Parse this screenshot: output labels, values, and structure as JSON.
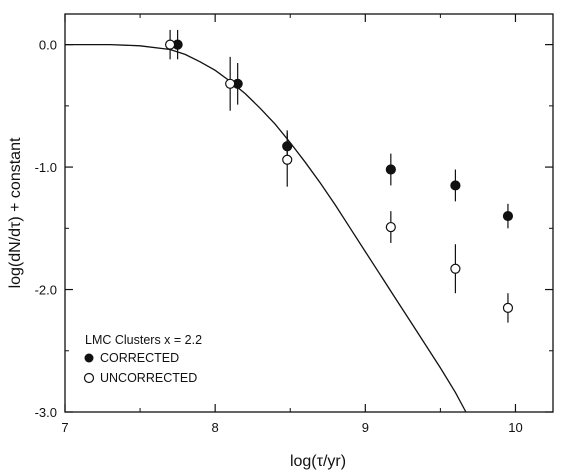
{
  "chart_data": {
    "type": "scatter",
    "title": "",
    "xlabel": "log(τ/yr)",
    "ylabel": "log(dN/dτ) + constant",
    "xlim": [
      7.0,
      10.25
    ],
    "ylim": [
      -3.0,
      0.25
    ],
    "xticks": [
      7,
      8,
      9,
      10
    ],
    "xtick_labels": [
      "7",
      "8",
      "9",
      "10"
    ],
    "yticks": [
      0.0,
      -1.0,
      -2.0,
      -3.0
    ],
    "ytick_labels": [
      "0.0",
      "-1.0",
      "-2.0",
      "-3.0"
    ],
    "legend": {
      "title": "LMC Clusters x = 2.2",
      "placement": "bottom-left",
      "entries": [
        "CORRECTED",
        "UNCORRECTED"
      ]
    },
    "series": [
      {
        "name": "CORRECTED",
        "marker": "filled-circle",
        "x": [
          7.75,
          8.15,
          8.48,
          9.17,
          9.6,
          9.95
        ],
        "y": [
          0.0,
          -0.32,
          -0.83,
          -1.02,
          -1.15,
          -1.4
        ],
        "err": [
          0.12,
          0.17,
          0.13,
          0.13,
          0.13,
          0.1
        ]
      },
      {
        "name": "UNCORRECTED",
        "marker": "open-circle",
        "x": [
          7.7,
          8.1,
          8.48,
          9.17,
          9.6,
          9.95
        ],
        "y": [
          0.0,
          -0.32,
          -0.94,
          -1.49,
          -1.83,
          -2.15
        ],
        "err": [
          0.12,
          0.22,
          0.22,
          0.13,
          0.2,
          0.12
        ]
      }
    ],
    "model_curve": {
      "x": [
        7.0,
        7.3,
        7.5,
        7.7,
        7.8,
        7.9,
        8.0,
        8.1,
        8.2,
        8.3,
        8.4,
        8.5,
        8.6,
        8.7,
        8.8,
        8.9,
        9.0,
        9.1,
        9.2,
        9.3,
        9.4,
        9.5,
        9.6,
        9.67
      ],
      "y": [
        0.0,
        0.0,
        -0.01,
        -0.04,
        -0.08,
        -0.14,
        -0.21,
        -0.3,
        -0.4,
        -0.52,
        -0.65,
        -0.8,
        -0.96,
        -1.13,
        -1.31,
        -1.5,
        -1.69,
        -1.88,
        -2.07,
        -2.26,
        -2.45,
        -2.64,
        -2.84,
        -3.0
      ]
    }
  }
}
